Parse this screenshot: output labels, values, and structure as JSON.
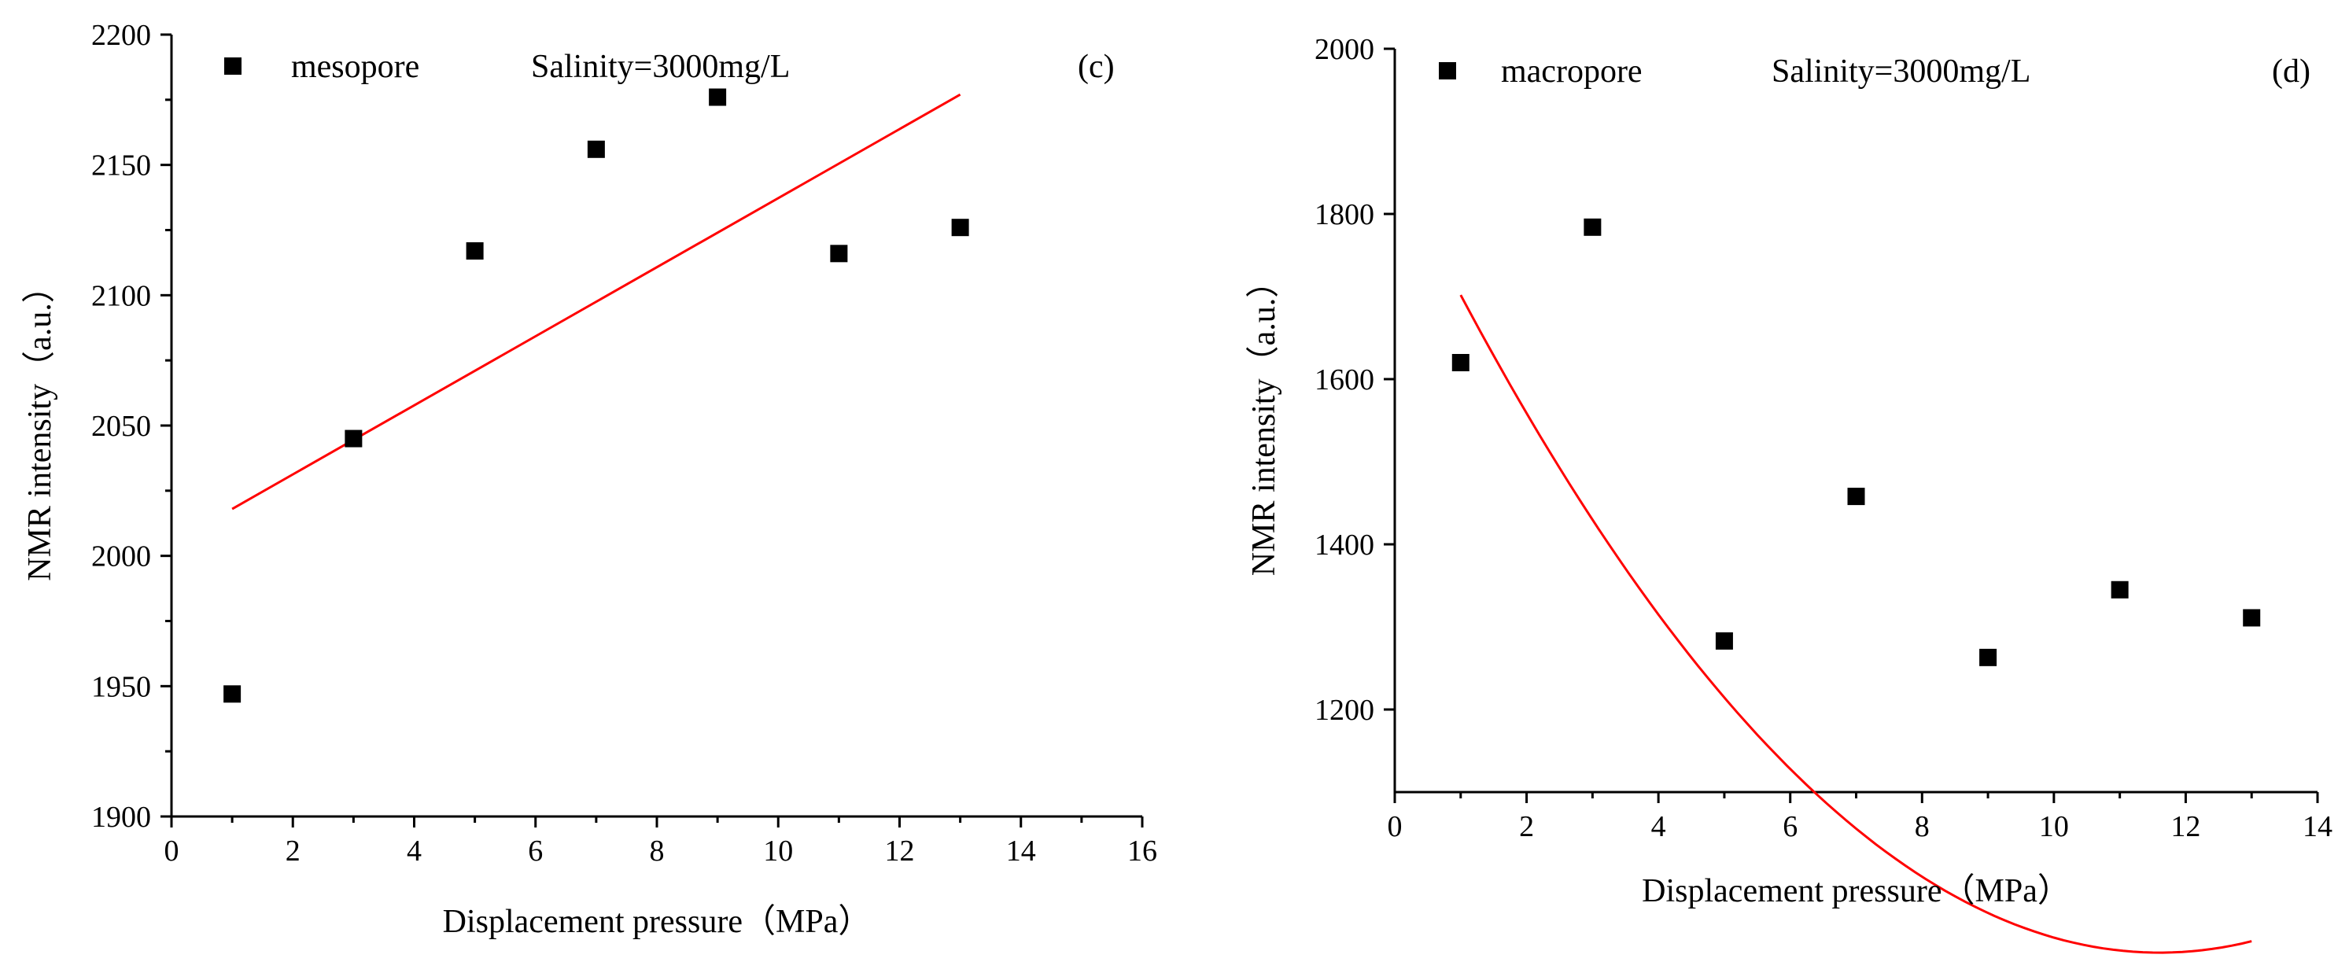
{
  "chart_data": [
    {
      "type": "scatter",
      "panel_label": "(c)",
      "xlabel": "Displacement pressure（MPa）",
      "ylabel": "NMR intensity（a.u.）",
      "xlim": [
        0,
        16
      ],
      "ylim": [
        1900,
        2200
      ],
      "x_ticks": [
        0,
        2,
        4,
        6,
        8,
        10,
        12,
        14,
        16
      ],
      "y_ticks": [
        1900,
        1950,
        2000,
        2050,
        2100,
        2150,
        2200
      ],
      "legend": {
        "label": "mesopore",
        "annotation": "Salinity=3000mg/L",
        "position": "top-left"
      },
      "series": [
        {
          "name": "mesopore",
          "x": [
            1,
            3,
            5,
            7,
            9,
            11,
            13
          ],
          "y": [
            1947,
            2045,
            2117,
            2156,
            2176,
            2116,
            2126
          ],
          "marker": "square",
          "color": "#000000"
        }
      ],
      "fit": {
        "type": "linear",
        "x_range": [
          1,
          13
        ],
        "y_range": [
          2018,
          2177
        ],
        "color": "#ff0000"
      }
    },
    {
      "type": "scatter",
      "panel_label": "(d)",
      "xlabel": "Displacement pressure（MPa）",
      "ylabel": "NMR intensity（a.u.）",
      "xlim": [
        0,
        14
      ],
      "ylim": [
        1100,
        2000
      ],
      "x_ticks": [
        0,
        2,
        4,
        6,
        8,
        10,
        12,
        14
      ],
      "y_ticks": [
        1200,
        1400,
        1600,
        1800,
        2000
      ],
      "legend": {
        "label": "macropore",
        "annotation": "Salinity=3000mg/L",
        "position": "top-left"
      },
      "series": [
        {
          "name": "macropore",
          "x": [
            1,
            3,
            5,
            7,
            9,
            11,
            13
          ],
          "y": [
            1620,
            1784,
            1283,
            1458,
            1263,
            1345,
            1311
          ],
          "marker": "square",
          "color": "#000000"
        }
      ],
      "fit": {
        "type": "quadratic",
        "x_range": [
          1,
          13
        ],
        "coefficients": [
          1859.05,
          -164.32,
          7.08
        ],
        "color": "#ff0000"
      }
    }
  ]
}
